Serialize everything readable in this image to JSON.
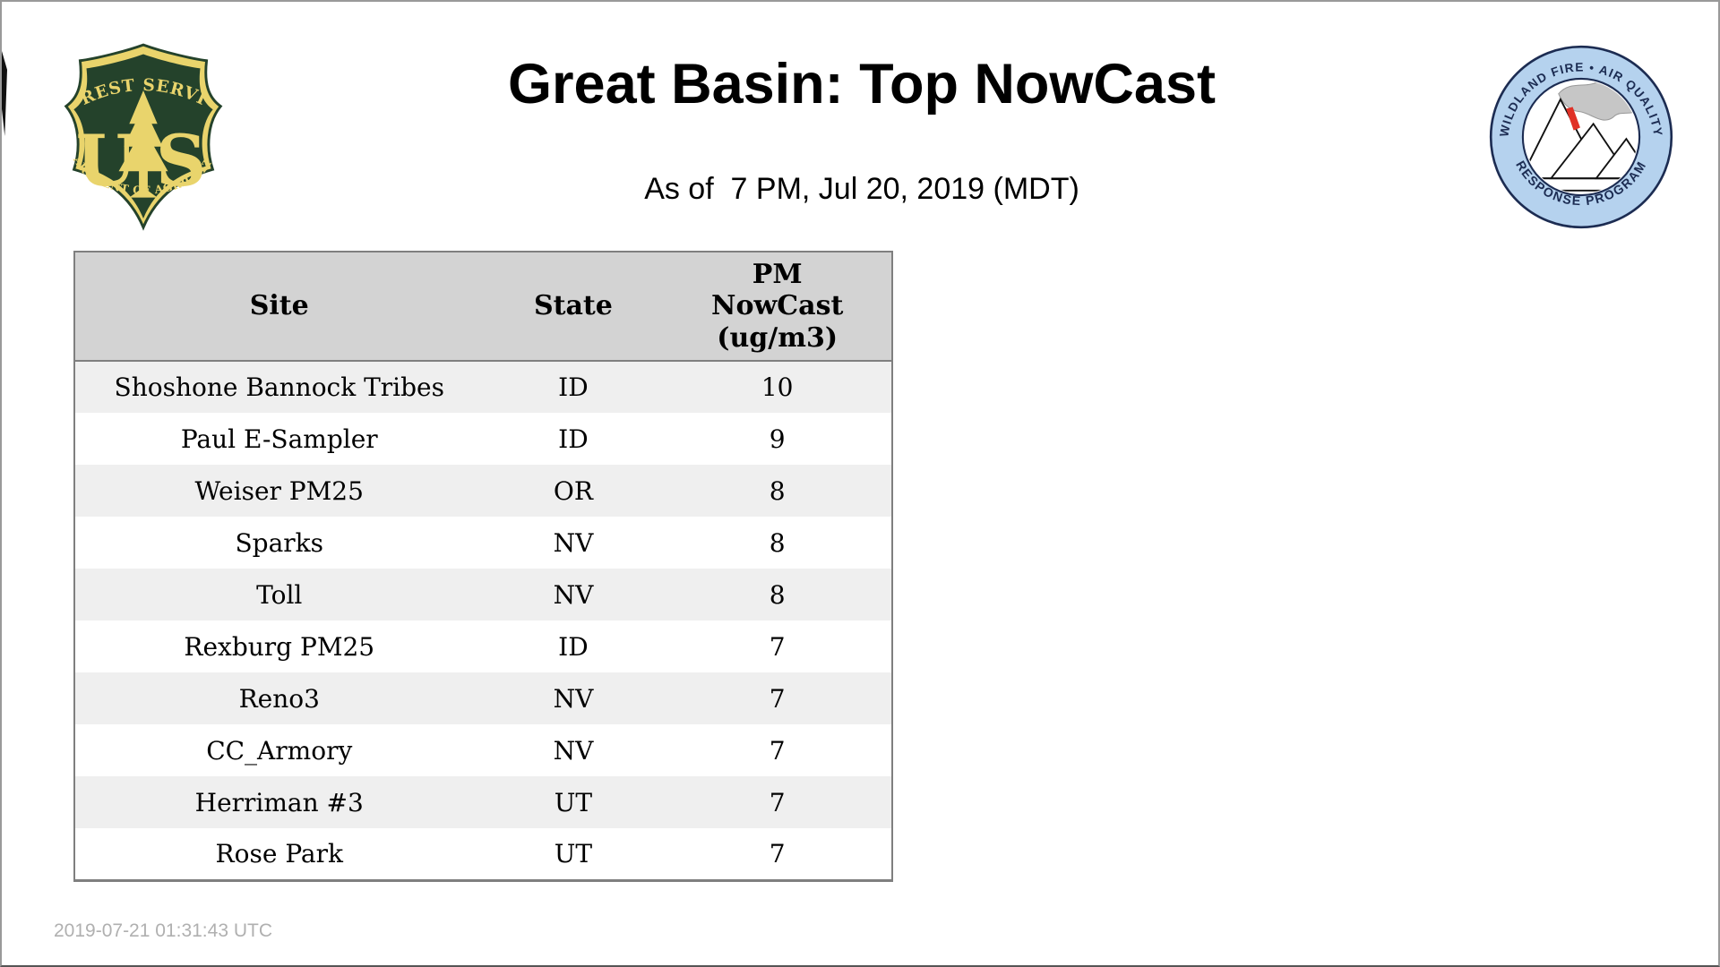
{
  "page": {
    "title": "Great Basin: Top NowCast",
    "subtitle": "As of  7 PM, Jul 20, 2019 (MDT)",
    "footer_timestamp": "2019-07-21 01:31:43 UTC"
  },
  "theme": {
    "page_border": "#999999",
    "header_bg": "#d3d3d3",
    "row_alt_bg": "#efefef",
    "table_border": "#7f7f7f",
    "footer_text": "#b0b0b0",
    "fs_green": "#24422b",
    "fs_gold": "#e9d46c",
    "wf_ring_blue": "#b5d2ee",
    "wf_navy": "#1c2c52",
    "wf_smoke": "#c6c6c6",
    "wf_smoke_edge": "#999999",
    "wf_fire_red": "#e03127"
  },
  "logos": {
    "forest_service": {
      "arc_top": "FOREST SERVICE",
      "letter_u": "U",
      "letter_s": "S",
      "arc_bottom": "DEPARTMENT OF AGRICULTURE"
    },
    "wfaqrp": {
      "arc_top": "WILDLAND FIRE • AIR QUALITY",
      "arc_bottom": "RESPONSE PROGRAM"
    }
  },
  "table": {
    "headers": [
      {
        "label": "Site"
      },
      {
        "label": "State"
      },
      {
        "label": "PM\nNowCast\n(ug/m3)"
      }
    ],
    "rows": [
      {
        "site": "Shoshone Bannock Tribes",
        "state": "ID",
        "value": "10"
      },
      {
        "site": "Paul E-Sampler",
        "state": "ID",
        "value": "9"
      },
      {
        "site": "Weiser PM25",
        "state": "OR",
        "value": "8"
      },
      {
        "site": "Sparks",
        "state": "NV",
        "value": "8"
      },
      {
        "site": "Toll",
        "state": "NV",
        "value": "8"
      },
      {
        "site": "Rexburg PM25",
        "state": "ID",
        "value": "7"
      },
      {
        "site": "Reno3",
        "state": "NV",
        "value": "7"
      },
      {
        "site": "CC_Armory",
        "state": "NV",
        "value": "7"
      },
      {
        "site": "Herriman #3",
        "state": "UT",
        "value": "7"
      },
      {
        "site": "Rose Park",
        "state": "UT",
        "value": "7"
      }
    ]
  }
}
